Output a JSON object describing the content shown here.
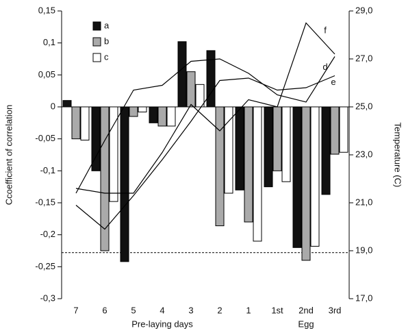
{
  "chart_data": {
    "type": "bar",
    "ylabel": "Ccoefficient of correlation",
    "y2label": "Temperature (C)",
    "categories": [
      "7",
      "6",
      "5",
      "4",
      "3",
      "2",
      "1",
      "1st",
      "2nd",
      "3rd"
    ],
    "groups": [
      {
        "label": "Pre-laying days",
        "from": 0,
        "to": 6
      },
      {
        "label": "Egg",
        "from": 7,
        "to": 9
      }
    ],
    "ylim": [
      -0.3,
      0.15
    ],
    "yticks": [
      {
        "value": 0.15,
        "label": "0,15"
      },
      {
        "value": 0.1,
        "label": "0,1"
      },
      {
        "value": 0.05,
        "label": "0,05"
      },
      0,
      {
        "value": -0.05,
        "label": "-0,05"
      },
      {
        "value": -0.1,
        "label": "-0,1"
      },
      {
        "value": -0.15,
        "label": "-0,15"
      },
      {
        "value": -0.2,
        "label": "-0,2"
      },
      {
        "value": -0.25,
        "label": "-0,25"
      },
      {
        "value": -0.3,
        "label": "-0,3"
      }
    ],
    "y2lim": [
      17,
      29
    ],
    "y2ticks": [
      {
        "value": 17,
        "label": "17,0"
      },
      {
        "value": 19,
        "label": "19,0"
      },
      {
        "value": 21,
        "label": "21,0"
      },
      {
        "value": 23,
        "label": "23,0"
      },
      {
        "value": 25,
        "label": "25,0"
      },
      {
        "value": 27,
        "label": "27,0"
      },
      {
        "value": 29,
        "label": "29,0"
      }
    ],
    "threshold": -0.228,
    "series": [
      {
        "name": "a",
        "color": "#111111",
        "values": [
          0.01,
          -0.1,
          -0.242,
          -0.025,
          0.102,
          0.088,
          -0.13,
          -0.125,
          -0.22,
          -0.137
        ]
      },
      {
        "name": "b",
        "color": "#aaaaaa",
        "values": [
          -0.05,
          -0.225,
          -0.015,
          -0.03,
          0.055,
          -0.186,
          -0.18,
          -0.1,
          -0.24,
          -0.074
        ]
      },
      {
        "name": "c",
        "color": "#ffffff",
        "values": [
          -0.052,
          -0.148,
          -0.008,
          -0.03,
          0.035,
          -0.135,
          -0.21,
          -0.117,
          -0.218,
          -0.071
        ]
      },
      {
        "name": "d",
        "type": "line",
        "axis": "y2",
        "color": "#000000",
        "values": [
          21.4,
          23.6,
          25.7,
          25.9,
          26.9,
          27.0,
          26.4,
          25.5,
          25.2,
          27.1
        ]
      },
      {
        "name": "e",
        "type": "line",
        "axis": "y2",
        "color": "#000000",
        "values": [
          20.9,
          19.9,
          21.3,
          22.8,
          24.4,
          26.1,
          26.2,
          25.7,
          25.8,
          26.3
        ]
      },
      {
        "name": "f",
        "type": "line",
        "axis": "y2",
        "color": "#000000",
        "values": [
          21.6,
          21.4,
          21.4,
          23.1,
          25.1,
          24.0,
          25.3,
          25.0,
          28.5,
          27.2
        ]
      }
    ]
  }
}
